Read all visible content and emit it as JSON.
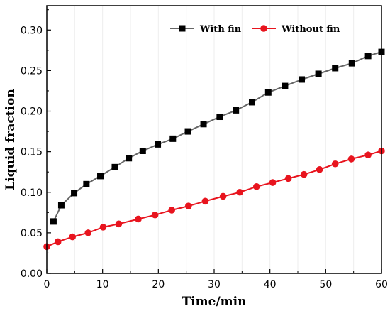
{
  "chart_data": {
    "type": "line",
    "title": "",
    "xlabel": "Time/min",
    "ylabel": "Liquid fraction",
    "xlim": [
      0,
      60
    ],
    "ylim": [
      0,
      0.33
    ],
    "xticks": [
      0,
      10,
      20,
      30,
      40,
      50,
      60
    ],
    "yticks": [
      0.0,
      0.05,
      0.1,
      0.15,
      0.2,
      0.25,
      0.3
    ],
    "ytick_labels": [
      "0.00",
      "0.05",
      "0.10",
      "0.15",
      "0.20",
      "0.25",
      "0.30"
    ],
    "grid": "vertical-light",
    "legend_position": "top-right",
    "series": [
      {
        "name": "With fin",
        "color": "#666666",
        "marker": "square",
        "marker_color": "#000000",
        "x": [
          1.2,
          2.6,
          4.9,
          7.1,
          9.6,
          12.2,
          14.7,
          17.2,
          19.9,
          22.6,
          25.3,
          28.1,
          31.0,
          33.9,
          36.8,
          39.7,
          42.7,
          45.7,
          48.7,
          51.7,
          54.7,
          57.6,
          60.0
        ],
        "y": [
          0.064,
          0.084,
          0.099,
          0.11,
          0.12,
          0.131,
          0.142,
          0.151,
          0.159,
          0.166,
          0.175,
          0.184,
          0.193,
          0.201,
          0.211,
          0.223,
          0.231,
          0.239,
          0.246,
          0.253,
          0.259,
          0.268,
          0.273
        ]
      },
      {
        "name": "Without fin",
        "color": "#e8141e",
        "marker": "circle",
        "marker_color": "#e8141e",
        "x": [
          0.0,
          2.0,
          4.6,
          7.4,
          10.1,
          12.9,
          16.4,
          19.4,
          22.4,
          25.4,
          28.4,
          31.6,
          34.6,
          37.6,
          40.5,
          43.3,
          46.1,
          48.9,
          51.7,
          54.6,
          57.6,
          60.0
        ],
        "y": [
          0.033,
          0.039,
          0.045,
          0.05,
          0.057,
          0.061,
          0.067,
          0.072,
          0.078,
          0.083,
          0.089,
          0.095,
          0.1,
          0.107,
          0.112,
          0.117,
          0.122,
          0.128,
          0.135,
          0.141,
          0.146,
          0.151
        ]
      }
    ]
  }
}
